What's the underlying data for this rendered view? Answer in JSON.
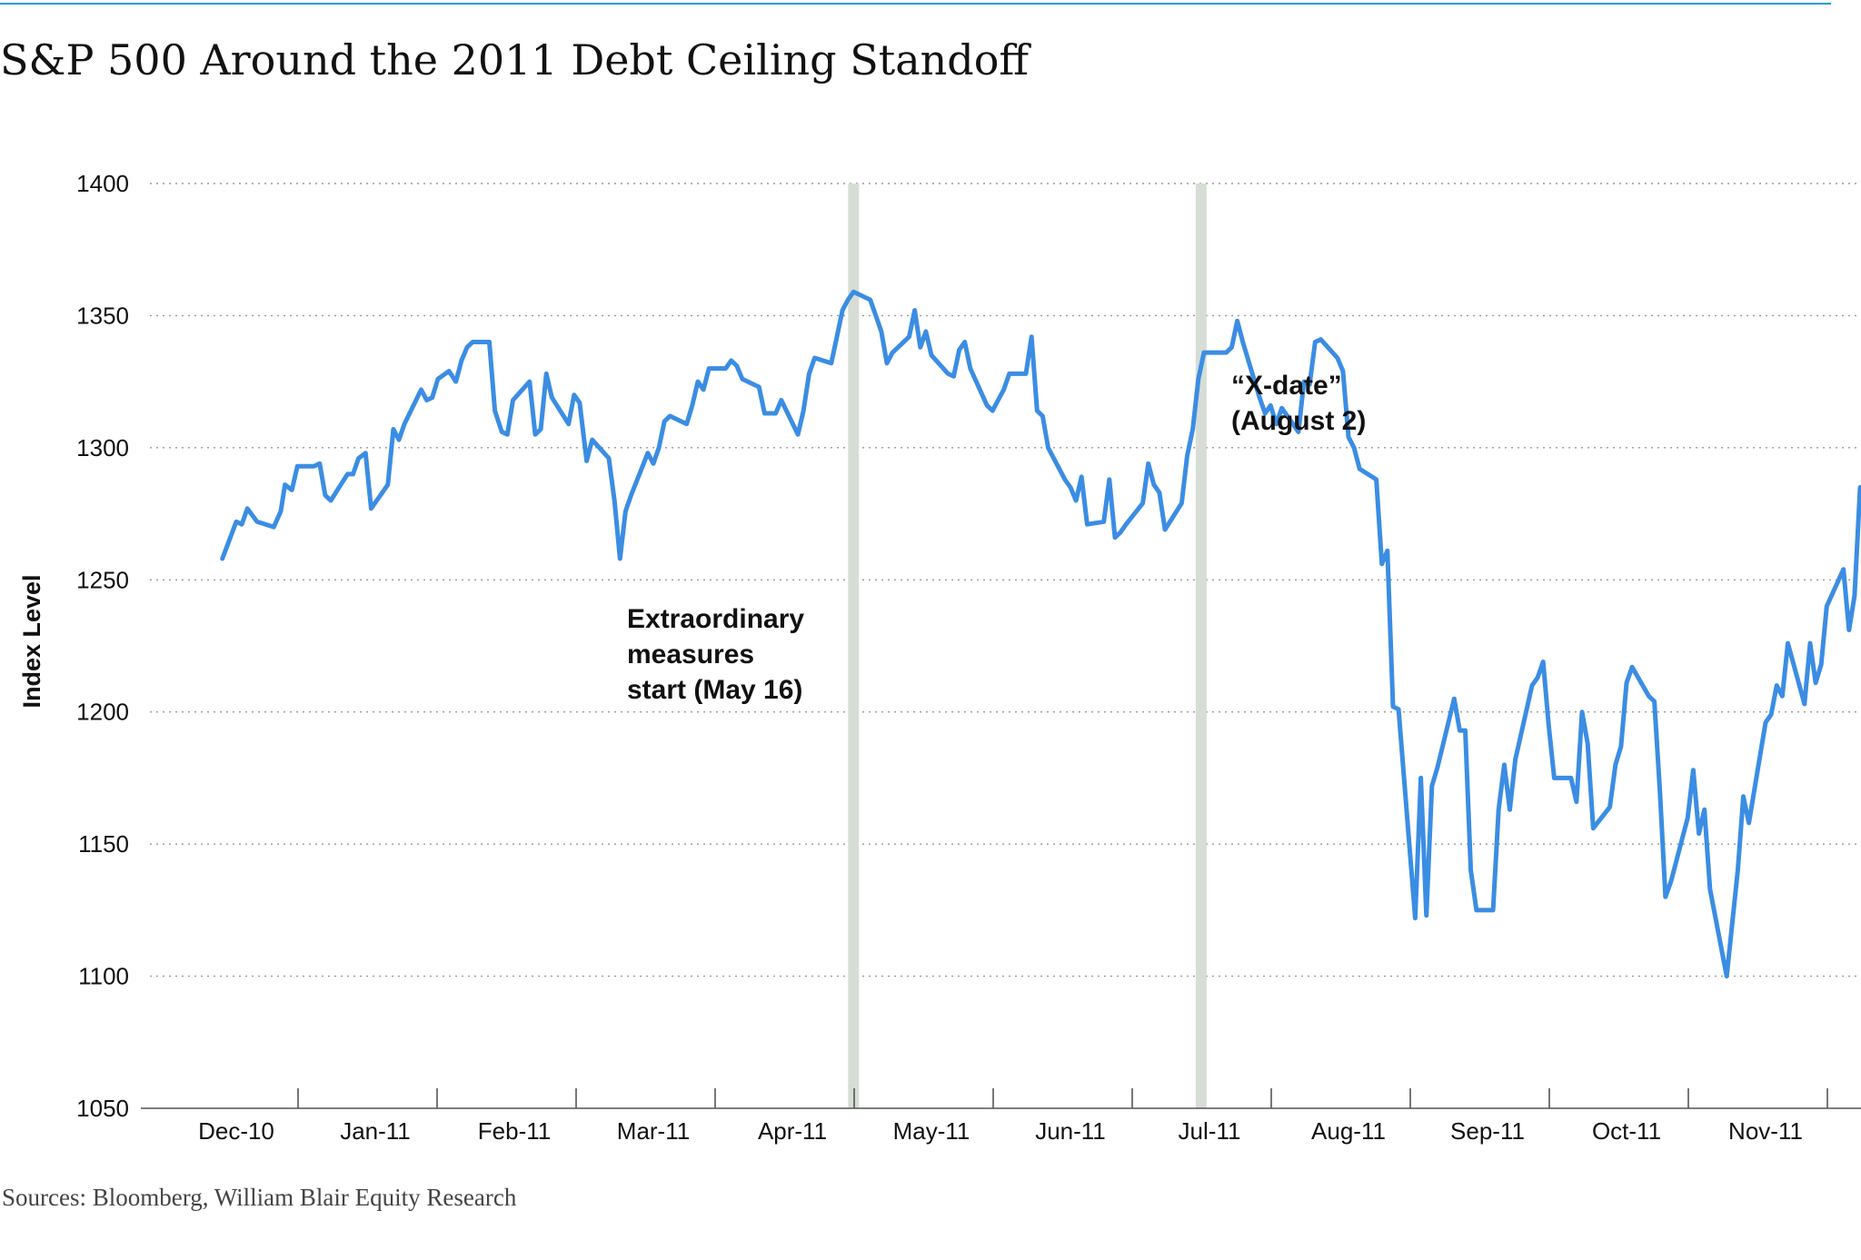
{
  "colors": {
    "line": "#3b8de3",
    "accent_rule": "#2a9ad8",
    "marker": "#d6ddd5",
    "grid": "#9a9a9a",
    "axis": "#555555",
    "text": "#111111"
  },
  "chart_data": {
    "type": "line",
    "title": "S&P 500 Around the 2011 Debt Ceiling Standoff",
    "source": "Sources: Bloomberg, William Blair Equity Research",
    "ylabel": "Index Level",
    "xlabel": "",
    "ylim": [
      1050,
      1400
    ],
    "yticks": [
      "1400",
      "1350",
      "1300",
      "1250",
      "1200",
      "1150",
      "1100",
      "1050"
    ],
    "ytick_values": [
      1400,
      1350,
      1300,
      1250,
      1200,
      1150,
      1100,
      1050
    ],
    "grid": true,
    "xlim": [
      -0.4,
      11.9
    ],
    "categories": [
      "Dec-10",
      "Jan-11",
      "Feb-11",
      "Mar-11",
      "Apr-11",
      "May-11",
      "Jun-11",
      "Jul-11",
      "Aug-11",
      "Sep-11",
      "Oct-11",
      "Nov-11"
    ],
    "markers": [
      {
        "name": "extraordinary-measures",
        "x": 4.44,
        "label_lines": [
          "Extraordinary",
          "measures",
          "start (May 16)"
        ]
      },
      {
        "name": "x-date",
        "x": 6.94,
        "label_lines": [
          "“X-date”",
          "(August 2)"
        ]
      }
    ],
    "series": [
      {
        "name": "S&P 500",
        "points": [
          [
            -0.1,
            1258
          ],
          [
            0.0,
            1272
          ],
          [
            0.04,
            1271
          ],
          [
            0.08,
            1277
          ],
          [
            0.15,
            1272
          ],
          [
            0.27,
            1270
          ],
          [
            0.32,
            1276
          ],
          [
            0.35,
            1286
          ],
          [
            0.4,
            1284
          ],
          [
            0.44,
            1293
          ],
          [
            0.56,
            1293
          ],
          [
            0.6,
            1294
          ],
          [
            0.64,
            1282
          ],
          [
            0.68,
            1280
          ],
          [
            0.8,
            1290
          ],
          [
            0.84,
            1290
          ],
          [
            0.88,
            1296
          ],
          [
            0.93,
            1298
          ],
          [
            0.97,
            1277
          ],
          [
            1.09,
            1286
          ],
          [
            1.13,
            1307
          ],
          [
            1.17,
            1303
          ],
          [
            1.21,
            1309
          ],
          [
            1.33,
            1322
          ],
          [
            1.37,
            1318
          ],
          [
            1.41,
            1319
          ],
          [
            1.45,
            1326
          ],
          [
            1.53,
            1329
          ],
          [
            1.58,
            1325
          ],
          [
            1.62,
            1333
          ],
          [
            1.66,
            1338
          ],
          [
            1.7,
            1340
          ],
          [
            1.82,
            1340
          ],
          [
            1.86,
            1314
          ],
          [
            1.91,
            1306
          ],
          [
            1.95,
            1305
          ],
          [
            1.99,
            1318
          ],
          [
            2.11,
            1325
          ],
          [
            2.15,
            1305
          ],
          [
            2.19,
            1307
          ],
          [
            2.23,
            1328
          ],
          [
            2.27,
            1319
          ],
          [
            2.39,
            1309
          ],
          [
            2.43,
            1320
          ],
          [
            2.47,
            1317
          ],
          [
            2.52,
            1295
          ],
          [
            2.56,
            1303
          ],
          [
            2.68,
            1296
          ],
          [
            2.72,
            1280
          ],
          [
            2.76,
            1258
          ],
          [
            2.8,
            1276
          ],
          [
            2.84,
            1282
          ],
          [
            2.96,
            1298
          ],
          [
            3.0,
            1294
          ],
          [
            3.04,
            1300
          ],
          [
            3.08,
            1310
          ],
          [
            3.12,
            1312
          ],
          [
            3.24,
            1309
          ],
          [
            3.28,
            1316
          ],
          [
            3.32,
            1325
          ],
          [
            3.36,
            1322
          ],
          [
            3.4,
            1330
          ],
          [
            3.52,
            1330
          ],
          [
            3.56,
            1333
          ],
          [
            3.6,
            1331
          ],
          [
            3.64,
            1326
          ],
          [
            3.76,
            1323
          ],
          [
            3.8,
            1313
          ],
          [
            3.84,
            1313
          ],
          [
            3.88,
            1313
          ],
          [
            3.92,
            1318
          ],
          [
            4.04,
            1305
          ],
          [
            4.08,
            1314
          ],
          [
            4.12,
            1328
          ],
          [
            4.16,
            1334
          ],
          [
            4.28,
            1332
          ],
          [
            4.32,
            1342
          ],
          [
            4.36,
            1352
          ],
          [
            4.4,
            1356
          ],
          [
            4.44,
            1359
          ],
          [
            4.56,
            1356
          ],
          [
            4.6,
            1350
          ],
          [
            4.64,
            1344
          ],
          [
            4.68,
            1332
          ],
          [
            4.72,
            1336
          ],
          [
            4.84,
            1342
          ],
          [
            4.88,
            1352
          ],
          [
            4.92,
            1338
          ],
          [
            4.96,
            1344
          ],
          [
            5.0,
            1335
          ],
          [
            5.12,
            1328
          ],
          [
            5.16,
            1327
          ],
          [
            5.2,
            1337
          ],
          [
            5.24,
            1340
          ],
          [
            5.28,
            1330
          ],
          [
            5.4,
            1316
          ],
          [
            5.44,
            1314
          ],
          [
            5.48,
            1318
          ],
          [
            5.52,
            1322
          ],
          [
            5.56,
            1328
          ],
          [
            5.68,
            1328
          ],
          [
            5.72,
            1342
          ],
          [
            5.76,
            1314
          ],
          [
            5.8,
            1312
          ],
          [
            5.84,
            1300
          ],
          [
            5.96,
            1288
          ],
          [
            6.0,
            1285
          ],
          [
            6.04,
            1280
          ],
          [
            6.08,
            1289
          ],
          [
            6.12,
            1271
          ],
          [
            6.24,
            1272
          ],
          [
            6.28,
            1288
          ],
          [
            6.32,
            1266
          ],
          [
            6.36,
            1268
          ],
          [
            6.4,
            1271
          ],
          [
            6.52,
            1279
          ],
          [
            6.56,
            1294
          ],
          [
            6.6,
            1286
          ],
          [
            6.64,
            1283
          ],
          [
            6.68,
            1269
          ],
          [
            6.8,
            1279
          ],
          [
            6.84,
            1297
          ],
          [
            6.88,
            1307
          ],
          [
            6.92,
            1326
          ],
          [
            6.96,
            1336
          ],
          [
            7.08,
            1336
          ],
          [
            7.12,
            1336
          ],
          [
            7.16,
            1338
          ],
          [
            7.2,
            1348
          ],
          [
            7.24,
            1340
          ],
          [
            7.36,
            1319
          ],
          [
            7.4,
            1313
          ],
          [
            7.44,
            1316
          ],
          [
            7.48,
            1309
          ],
          [
            7.52,
            1315
          ],
          [
            7.64,
            1306
          ],
          [
            7.68,
            1325
          ],
          [
            7.72,
            1324
          ],
          [
            7.76,
            1340
          ],
          [
            7.8,
            1341
          ],
          [
            7.92,
            1334
          ],
          [
            7.96,
            1329
          ],
          [
            8.0,
            1304
          ],
          [
            8.04,
            1300
          ],
          [
            8.08,
            1292
          ],
          [
            8.2,
            1288
          ],
          [
            8.24,
            1256
          ],
          [
            8.28,
            1261
          ],
          [
            8.32,
            1202
          ],
          [
            8.36,
            1201
          ],
          [
            8.48,
            1122
          ],
          [
            8.52,
            1175
          ],
          [
            8.56,
            1123
          ],
          [
            8.6,
            1172
          ],
          [
            8.64,
            1179
          ],
          [
            8.76,
            1205
          ],
          [
            8.8,
            1193
          ],
          [
            8.84,
            1193
          ],
          [
            8.88,
            1140
          ],
          [
            8.92,
            1125
          ],
          [
            9.04,
            1125
          ],
          [
            9.08,
            1163
          ],
          [
            9.12,
            1180
          ],
          [
            9.16,
            1163
          ],
          [
            9.2,
            1182
          ],
          [
            9.32,
            1210
          ],
          [
            9.36,
            1213
          ],
          [
            9.4,
            1219
          ],
          [
            9.44,
            1195
          ],
          [
            9.48,
            1175
          ],
          [
            9.6,
            1175
          ],
          [
            9.64,
            1166
          ],
          [
            9.68,
            1200
          ],
          [
            9.72,
            1188
          ],
          [
            9.76,
            1156
          ],
          [
            9.88,
            1164
          ],
          [
            9.92,
            1180
          ],
          [
            9.96,
            1187
          ],
          [
            10.0,
            1211
          ],
          [
            10.04,
            1217
          ],
          [
            10.16,
            1206
          ],
          [
            10.2,
            1204
          ],
          [
            10.24,
            1170
          ],
          [
            10.28,
            1130
          ],
          [
            10.32,
            1136
          ],
          [
            10.44,
            1160
          ],
          [
            10.48,
            1178
          ],
          [
            10.52,
            1154
          ],
          [
            10.56,
            1163
          ],
          [
            10.6,
            1133
          ],
          [
            10.72,
            1100
          ],
          [
            10.76,
            1120
          ],
          [
            10.8,
            1140
          ],
          [
            10.84,
            1168
          ],
          [
            10.88,
            1158
          ],
          [
            11.0,
            1196
          ],
          [
            11.04,
            1199
          ],
          [
            11.08,
            1210
          ],
          [
            11.12,
            1206
          ],
          [
            11.16,
            1226
          ],
          [
            11.28,
            1203
          ],
          [
            11.32,
            1226
          ],
          [
            11.36,
            1211
          ],
          [
            11.4,
            1218
          ],
          [
            11.44,
            1240
          ],
          [
            11.56,
            1254
          ],
          [
            11.6,
            1231
          ],
          [
            11.64,
            1244
          ],
          [
            11.68,
            1285
          ],
          [
            11.72,
            1285
          ]
        ]
      }
    ]
  }
}
